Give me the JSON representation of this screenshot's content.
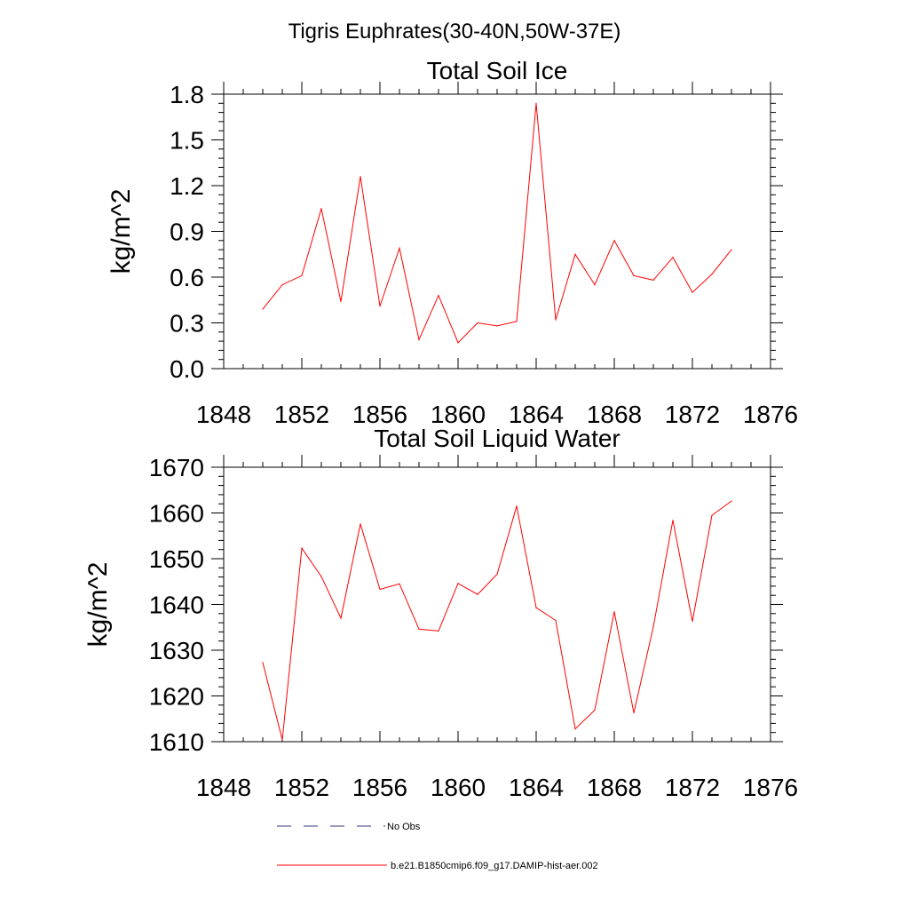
{
  "figure_title": "Tigris Euphrates(30-40N,50W-37E)",
  "legend": [
    {
      "label": "No Obs",
      "color": "#3a3a7a",
      "dash": "dashed"
    },
    {
      "label": "b.e21.B1850cmip6.f09_g17.DAMIP-hist-aer.002",
      "color": "#ff0000",
      "dash": "solid"
    }
  ],
  "chart_data": [
    {
      "type": "line",
      "title": "Total Soil Ice",
      "xlabel": "",
      "ylabel": "kg/m^2",
      "xlim": [
        1848,
        1876
      ],
      "ylim": [
        0.0,
        1.8
      ],
      "xticks": [
        1848,
        1852,
        1856,
        1860,
        1864,
        1868,
        1872,
        1876
      ],
      "yticks": [
        "0.0",
        "0.3",
        "0.6",
        "0.9",
        "1.2",
        "1.5",
        "1.8"
      ],
      "grid": false,
      "x": [
        1850,
        1851,
        1852,
        1853,
        1854,
        1855,
        1856,
        1857,
        1858,
        1859,
        1860,
        1861,
        1862,
        1863,
        1864,
        1865,
        1866,
        1867,
        1868,
        1869,
        1870,
        1871,
        1872,
        1873,
        1874
      ],
      "series": [
        {
          "color": "#ff0000",
          "values": [
            0.39,
            0.55,
            0.61,
            1.05,
            0.44,
            1.26,
            0.41,
            0.79,
            0.19,
            0.48,
            0.17,
            0.3,
            0.28,
            0.31,
            1.74,
            0.32,
            0.75,
            0.55,
            0.84,
            0.61,
            0.58,
            0.73,
            0.5,
            0.62,
            0.78
          ]
        }
      ]
    },
    {
      "type": "line",
      "title": "Total Soil Liquid Water",
      "xlabel": "",
      "ylabel": "kg/m^2",
      "xlim": [
        1848,
        1876
      ],
      "ylim": [
        1610,
        1670
      ],
      "xticks": [
        1848,
        1852,
        1856,
        1860,
        1864,
        1868,
        1872,
        1876
      ],
      "yticks": [
        "1610",
        "1620",
        "1630",
        "1640",
        "1650",
        "1660",
        "1670"
      ],
      "grid": false,
      "x": [
        1850,
        1851,
        1852,
        1853,
        1854,
        1855,
        1856,
        1857,
        1858,
        1859,
        1860,
        1861,
        1862,
        1863,
        1864,
        1865,
        1866,
        1867,
        1868,
        1869,
        1870,
        1871,
        1872,
        1873,
        1874
      ],
      "series": [
        {
          "color": "#ff0000",
          "values": [
            1627.3,
            1610.4,
            1652.3,
            1646.1,
            1637.0,
            1657.6,
            1643.3,
            1644.5,
            1634.6,
            1634.2,
            1644.6,
            1642.2,
            1646.6,
            1661.5,
            1639.3,
            1636.5,
            1612.8,
            1616.9,
            1638.4,
            1616.3,
            1635.1,
            1658.4,
            1636.3,
            1659.5,
            1662.6
          ]
        }
      ]
    }
  ]
}
